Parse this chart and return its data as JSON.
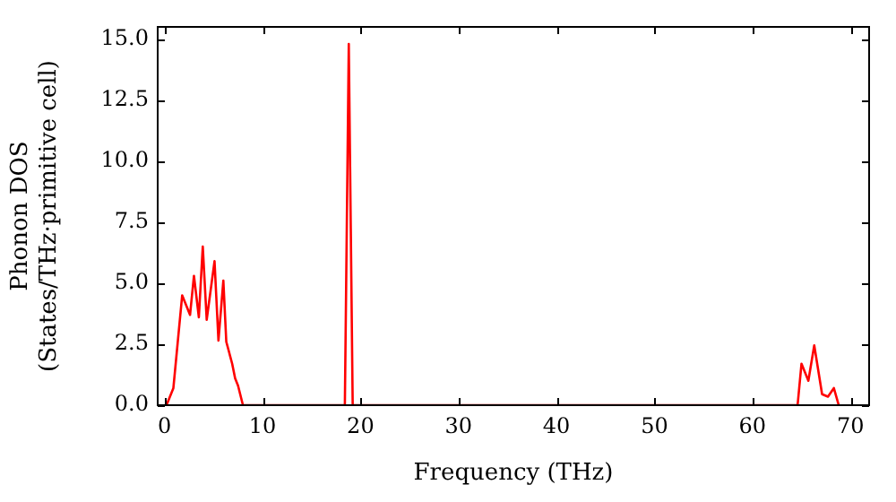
{
  "chart_data": {
    "type": "line",
    "xlabel": "Frequency (THz)",
    "ylabel": "Phonon DOS\n(States/THz·primitive cell)",
    "x": [
      0,
      0.2,
      0.9,
      1.8,
      2.6,
      3.0,
      3.5,
      3.9,
      4.3,
      5.1,
      5.5,
      6.0,
      6.3,
      6.9,
      7.2,
      7.5,
      8.0,
      18.4,
      18.8,
      19.2,
      64.6,
      65.0,
      65.7,
      66.3,
      67.1,
      67.7,
      68.3,
      68.8
    ],
    "series": [
      {
        "color": "#ff0000",
        "values": [
          0,
          0,
          0.7,
          4.5,
          3.7,
          5.3,
          3.6,
          6.5,
          3.5,
          5.9,
          2.65,
          5.1,
          2.6,
          1.7,
          1.1,
          0.8,
          0,
          0,
          14.8,
          0,
          0,
          1.7,
          1.0,
          2.45,
          0.45,
          0.35,
          0.7,
          0
        ]
      }
    ],
    "xlim": [
      -0.7,
      71.9
    ],
    "xticks": [
      0,
      10,
      20,
      30,
      40,
      50,
      60,
      70
    ],
    "ylim": [
      0,
      15.5
    ],
    "yticks": [
      {
        "value": 0,
        "label": "0.0"
      },
      {
        "value": 2.5,
        "label": "2.5"
      },
      {
        "value": 5,
        "label": "5.0"
      },
      {
        "value": 7.5,
        "label": "7.5"
      },
      {
        "value": 10,
        "label": "10.0"
      },
      {
        "value": 12.5,
        "label": "12.5"
      },
      {
        "value": 15,
        "label": "15.0"
      }
    ],
    "grid": false,
    "legend": false,
    "marker": "none",
    "line_style": "solid"
  }
}
